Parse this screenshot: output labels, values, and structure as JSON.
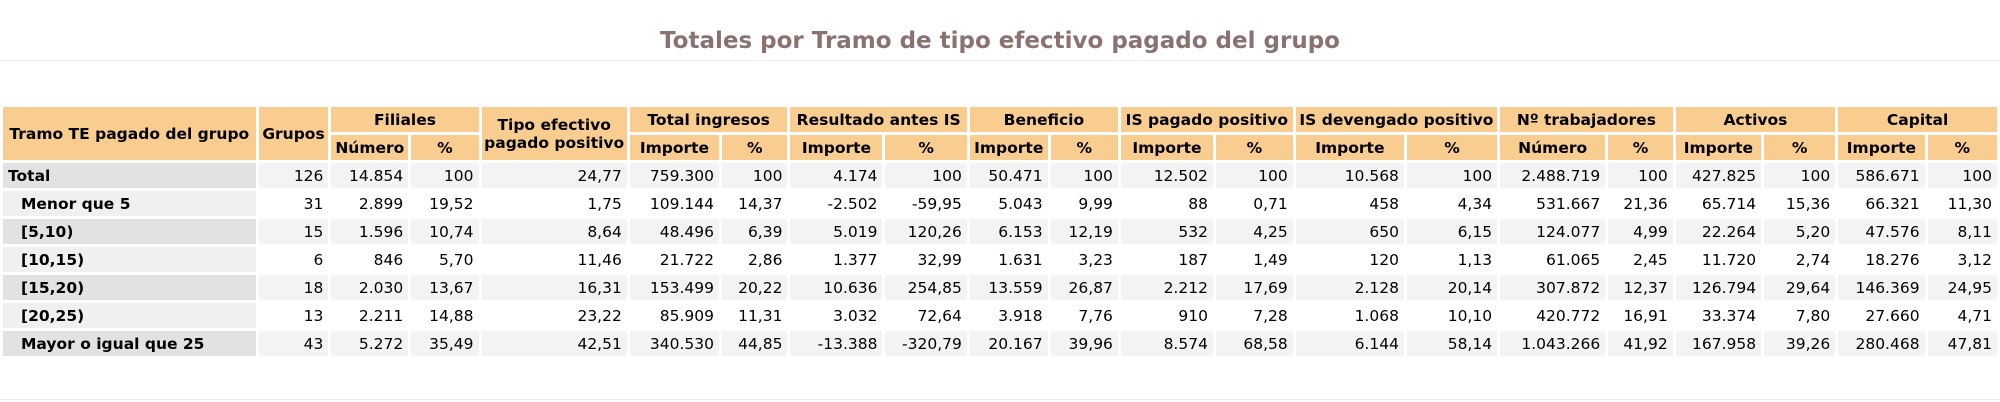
{
  "title": "Totales por Tramo de tipo efectivo pagado del grupo",
  "table": {
    "corner": "Tramo TE pagado del grupo",
    "grupos": "Grupos",
    "groups": [
      {
        "label": "Filiales",
        "subs": [
          "Número",
          "%"
        ]
      },
      {
        "label": "Tipo efectivo pagado positivo"
      },
      {
        "label": "Total ingresos",
        "subs": [
          "Importe",
          "%"
        ]
      },
      {
        "label": "Resultado antes IS",
        "subs": [
          "Importe",
          "%"
        ]
      },
      {
        "label": "Beneficio",
        "subs": [
          "Importe",
          "%"
        ]
      },
      {
        "label": "IS pagado positivo",
        "subs": [
          "Importe",
          "%"
        ]
      },
      {
        "label": "IS devengado positivo",
        "subs": [
          "Importe",
          "%"
        ]
      },
      {
        "label": "Nº trabajadores",
        "subs": [
          "Número",
          "%"
        ]
      },
      {
        "label": "Activos",
        "subs": [
          "Importe",
          "%"
        ]
      },
      {
        "label": "Capital",
        "subs": [
          "Importe",
          "%"
        ]
      }
    ],
    "rows": [
      {
        "label": "Total",
        "cells": [
          "126",
          "14.854",
          "100",
          "24,77",
          "759.300",
          "100",
          "4.174",
          "100",
          "50.471",
          "100",
          "12.502",
          "100",
          "10.568",
          "100",
          "2.488.719",
          "100",
          "427.825",
          "100",
          "586.671",
          "100"
        ]
      },
      {
        "label": "Menor que 5",
        "cells": [
          "31",
          "2.899",
          "19,52",
          "1,75",
          "109.144",
          "14,37",
          "-2.502",
          "-59,95",
          "5.043",
          "9,99",
          "88",
          "0,71",
          "458",
          "4,34",
          "531.667",
          "21,36",
          "65.714",
          "15,36",
          "66.321",
          "11,30"
        ]
      },
      {
        "label": "[5,10)",
        "cells": [
          "15",
          "1.596",
          "10,74",
          "8,64",
          "48.496",
          "6,39",
          "5.019",
          "120,26",
          "6.153",
          "12,19",
          "532",
          "4,25",
          "650",
          "6,15",
          "124.077",
          "4,99",
          "22.264",
          "5,20",
          "47.576",
          "8,11"
        ]
      },
      {
        "label": "[10,15)",
        "cells": [
          "6",
          "846",
          "5,70",
          "11,46",
          "21.722",
          "2,86",
          "1.377",
          "32,99",
          "1.631",
          "3,23",
          "187",
          "1,49",
          "120",
          "1,13",
          "61.065",
          "2,45",
          "11.720",
          "2,74",
          "18.276",
          "3,12"
        ]
      },
      {
        "label": "[15,20)",
        "cells": [
          "18",
          "2.030",
          "13,67",
          "16,31",
          "153.499",
          "20,22",
          "10.636",
          "254,85",
          "13.559",
          "26,87",
          "2.212",
          "17,69",
          "2.128",
          "20,14",
          "307.872",
          "12,37",
          "126.794",
          "29,64",
          "146.369",
          "24,95"
        ]
      },
      {
        "label": "[20,25)",
        "cells": [
          "13",
          "2.211",
          "14,88",
          "23,22",
          "85.909",
          "11,31",
          "3.032",
          "72,64",
          "3.918",
          "7,76",
          "910",
          "7,28",
          "1.068",
          "10,10",
          "420.772",
          "16,91",
          "33.374",
          "7,80",
          "27.660",
          "4,71"
        ]
      },
      {
        "label": "Mayor o igual que 25",
        "cells": [
          "43",
          "5.272",
          "35,49",
          "42,51",
          "340.530",
          "44,85",
          "-13.388",
          "-320,79",
          "20.167",
          "39,96",
          "8.574",
          "68,58",
          "6.144",
          "58,14",
          "1.043.266",
          "41,92",
          "167.958",
          "39,26",
          "280.468",
          "47,81"
        ]
      }
    ]
  }
}
